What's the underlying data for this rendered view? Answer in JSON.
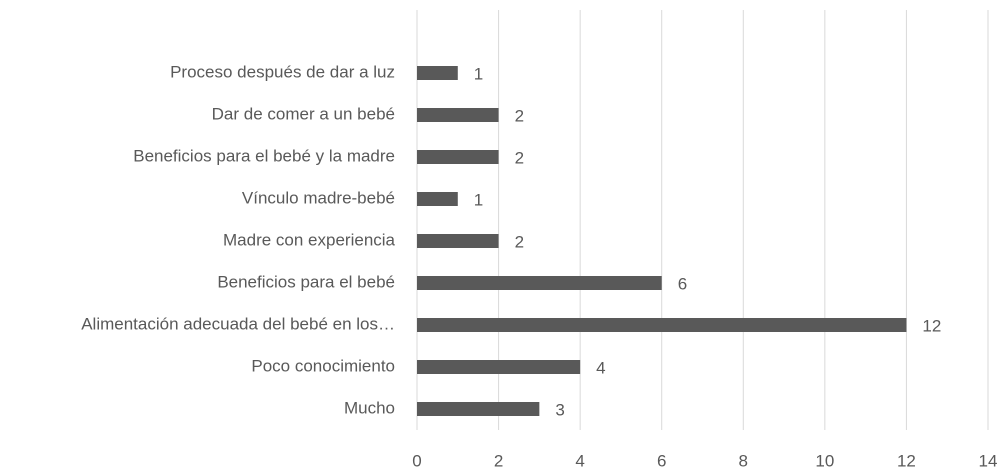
{
  "chart_data": {
    "type": "barh",
    "categories": [
      "Proceso después de dar a luz",
      "Dar de comer a un bebé",
      "Beneficios para el bebé y la madre",
      "Vínculo madre-bebé",
      "Madre con experiencia",
      "Beneficios para el bebé",
      "Alimentación adecuada del bebé en los…",
      "Poco conocimiento",
      "Mucho"
    ],
    "values": [
      1,
      2,
      2,
      1,
      2,
      6,
      12,
      4,
      3
    ],
    "color": "#595959",
    "xlim": [
      0,
      14
    ],
    "xticks": [
      0,
      2,
      4,
      6,
      8,
      10,
      12,
      14
    ],
    "grid": true
  }
}
